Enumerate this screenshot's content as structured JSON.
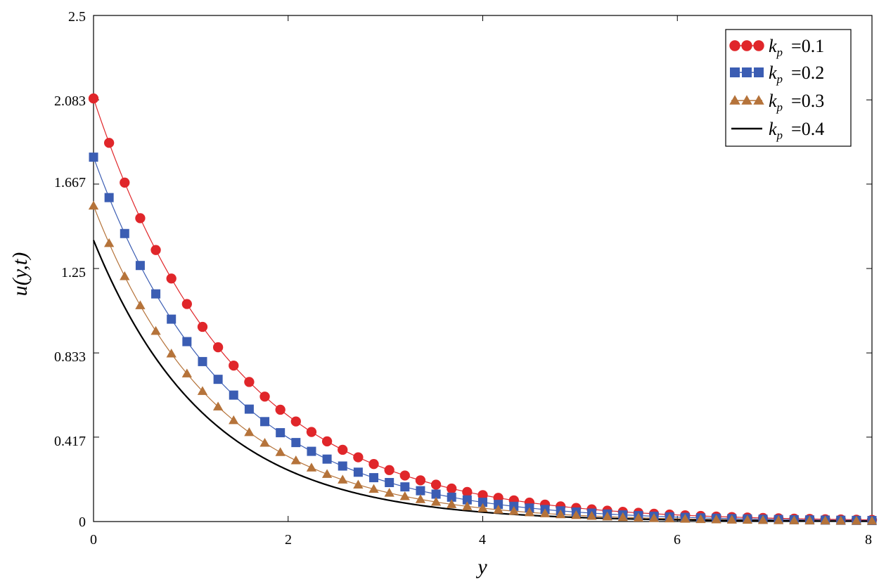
{
  "chart_data": {
    "type": "line",
    "xlabel": "y",
    "ylabel": "u(y,t)",
    "xlim": [
      0,
      8
    ],
    "ylim": [
      0,
      2.5
    ],
    "xticks": [
      "0",
      "2",
      "4",
      "6",
      "8"
    ],
    "yticks": [
      "0",
      "0.417",
      "0.833",
      "1.25",
      "1.667",
      "2.083",
      "2.5"
    ],
    "grid": false,
    "legend_position": "top-right",
    "series": [
      {
        "name": "k_p = 0.1",
        "label_sym": "k",
        "label_sub": "p",
        "label_val": "=0.1",
        "color": "#e0262a",
        "marker": "circle",
        "u0": 2.09,
        "decay": 0.693
      },
      {
        "name": "k_p = 0.2",
        "label_sym": "k",
        "label_sub": "p",
        "label_val": "=0.2",
        "color": "#3b5db3",
        "marker": "square",
        "u0": 1.8,
        "decay": 0.735
      },
      {
        "name": "k_p = 0.3",
        "label_sym": "k",
        "label_sub": "p",
        "label_val": "=0.3",
        "color": "#b5733a",
        "marker": "triangle",
        "u0": 1.56,
        "decay": 0.79
      },
      {
        "name": "k_p = 0.4",
        "label_sym": "k",
        "label_sub": "p",
        "label_val": "=0.4",
        "color": "#000000",
        "marker": "none",
        "u0": 1.39,
        "decay": 0.85
      }
    ]
  }
}
